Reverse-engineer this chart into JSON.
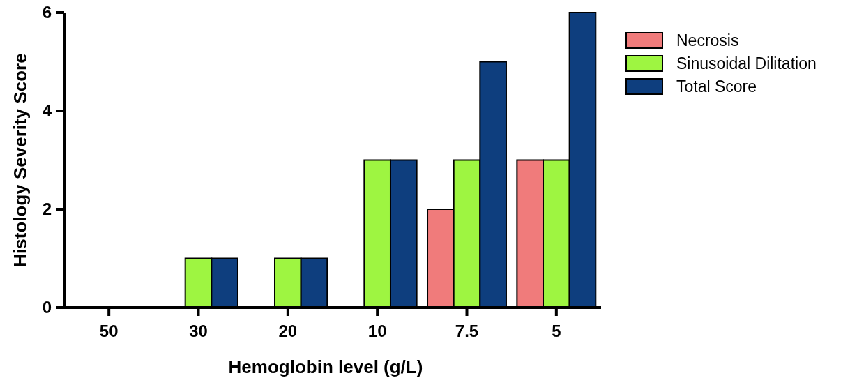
{
  "chart_data": {
    "type": "bar",
    "xlabel": "Hemoglobin level (g/L)",
    "ylabel": "Histology Severity Score",
    "categories": [
      "50",
      "30",
      "20",
      "10",
      "7.5",
      "5"
    ],
    "series": [
      {
        "name": "Necrosis",
        "color": "#f07b7b",
        "values": [
          0,
          0,
          0,
          0,
          2,
          3
        ]
      },
      {
        "name": "Sinusoidal Dilitation",
        "color": "#9ef541",
        "values": [
          0,
          1,
          1,
          3,
          3,
          3
        ]
      },
      {
        "name": "Total Score",
        "color": "#0e3e7e",
        "values": [
          0,
          1,
          1,
          3,
          5,
          6
        ]
      }
    ],
    "ylim": [
      0,
      6
    ],
    "yticks": [
      0,
      2,
      4,
      6
    ],
    "grid": false,
    "legend": "right"
  }
}
